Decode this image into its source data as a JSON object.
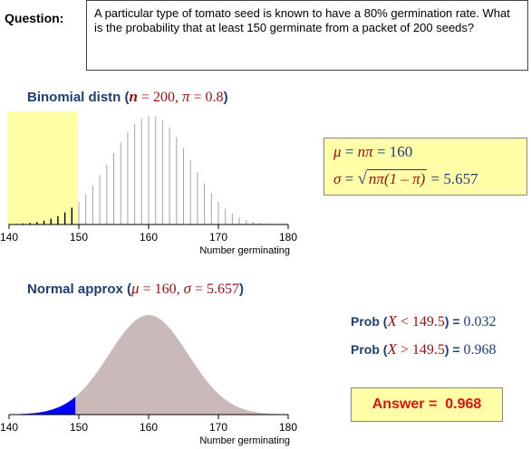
{
  "question": {
    "label": "Question:",
    "text": "A particular type of tomato seed is known to have a 80% germination rate. What is the probability that at least 150 germinate from a packet of 200 seeds?"
  },
  "binomial": {
    "title_prefix": "Binomial distn (",
    "n_symbol": "n",
    "n_eq": " = 200, ",
    "pi_symbol": "π",
    "pi_eq": " = 0.8",
    "title_suffix": ")"
  },
  "formulas": {
    "mu_symbol": "μ",
    "mu_eq": " = ",
    "mu_expr": "nπ",
    "mu_eq2": " =  160",
    "sigma_symbol": "σ",
    "sigma_eq": " = ",
    "sigma_expr": "nπ(1 – π)",
    "sigma_value": " =  5.657"
  },
  "normal": {
    "title_prefix": "Normal approx (",
    "mu_symbol": "μ",
    "mu_eq": " = 160, ",
    "sigma_symbol": "σ",
    "sigma_eq": " = 5.657",
    "title_suffix": ")"
  },
  "probabilities": [
    {
      "prefix": "Prob (",
      "x": "X",
      "rel": " < 149.5",
      "close": ")",
      "eq": " = ",
      "value": "0.032"
    },
    {
      "prefix": "Prob (",
      "x": "X",
      "rel": " > 149.5",
      "close": ")",
      "eq": " = ",
      "value": "0.968"
    }
  ],
  "answer": {
    "label": "Answer =",
    "value": "0.968"
  },
  "colors": {
    "highlight": "#ffffa8",
    "normal_fill": "#c9b9b9",
    "tail_fill": "#0000ff",
    "title_blue": "#1f3f73",
    "symbol_red": "#a01010",
    "answer_red": "#e01010"
  },
  "chart_data": [
    {
      "type": "bar",
      "description_none": "",
      "n": 200,
      "pi": 0.8,
      "x_range": [
        140,
        180
      ],
      "highlighted_below": 149.5,
      "xlabel": "Number germinating",
      "x_ticks": [
        "140",
        "150",
        "160",
        "170",
        "180"
      ]
    },
    {
      "type": "area",
      "mean": 160,
      "sd": 5.657,
      "x_range": [
        140,
        180
      ],
      "shaded_below": 149.5,
      "xlabel": "Number germinating",
      "x_ticks": [
        "140",
        "150",
        "160",
        "170",
        "180"
      ]
    }
  ]
}
